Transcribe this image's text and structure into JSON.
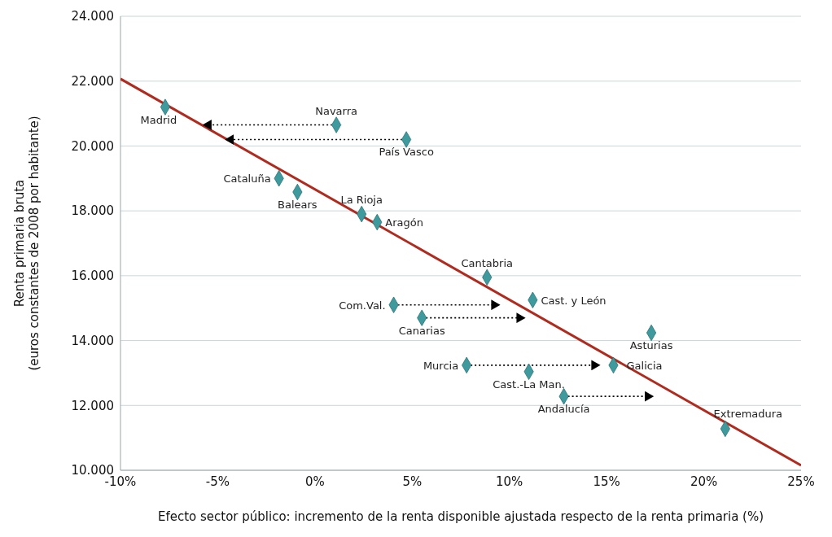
{
  "chart_data": {
    "type": "scatter",
    "xlabel": "Efecto sector público: incremento de la renta disponible ajustada respecto de la renta primaria (%)",
    "ylabel": "Renta primaria bruta\n(euros constantes de 2008 por habitante)",
    "xlim": [
      -10,
      25
    ],
    "xticks": [
      {
        "value": -10,
        "label": "-10%"
      },
      {
        "value": -5,
        "label": "-5%"
      },
      {
        "value": 0,
        "label": "0%"
      },
      {
        "value": 5,
        "label": "5%"
      },
      {
        "value": 10,
        "label": "10%"
      },
      {
        "value": 15,
        "label": "15%"
      },
      {
        "value": 20,
        "label": "20%"
      },
      {
        "value": 25,
        "label": "25%"
      }
    ],
    "ylim": [
      10000,
      24000
    ],
    "yticks": [
      {
        "value": 10000,
        "label": "10.000"
      },
      {
        "value": 12000,
        "label": "12.000"
      },
      {
        "value": 14000,
        "label": "14.000"
      },
      {
        "value": 16000,
        "label": "16.000"
      },
      {
        "value": 18000,
        "label": "18.000"
      },
      {
        "value": 20000,
        "label": "20.000"
      },
      {
        "value": 22000,
        "label": "22.000"
      },
      {
        "value": 24000,
        "label": "24.000"
      }
    ],
    "grid": "y",
    "marker": "diamond",
    "series": [
      {
        "type": "line",
        "color": "#b02a1e",
        "marker": "none",
        "line_style": "solid",
        "x": [
          -10,
          25
        ],
        "values": [
          22070,
          10150
        ]
      },
      {
        "type": "line",
        "color": "#000000",
        "marker": "none",
        "line_style": "dotted",
        "x": [
          1.1,
          -5.65
        ],
        "values": [
          20650,
          20650
        ]
      },
      {
        "type": "line",
        "color": "#000000",
        "marker": "none",
        "line_style": "dotted",
        "x": [
          4.7,
          -4.5
        ],
        "values": [
          20200,
          20200
        ]
      },
      {
        "type": "line",
        "color": "#000000",
        "marker": "none",
        "line_style": "dotted",
        "x": [
          4.05,
          9.4
        ],
        "values": [
          15100,
          15100
        ]
      },
      {
        "type": "line",
        "color": "#000000",
        "marker": "none",
        "line_style": "dotted",
        "x": [
          5.5,
          10.7
        ],
        "values": [
          14700,
          14700
        ]
      },
      {
        "type": "line",
        "color": "#000000",
        "marker": "none",
        "line_style": "dotted",
        "x": [
          7.8,
          14.55
        ],
        "values": [
          13240,
          13240
        ]
      },
      {
        "type": "line",
        "color": "#000000",
        "marker": "none",
        "line_style": "dotted",
        "x": [
          12.8,
          17.3
        ],
        "values": [
          12280,
          12280
        ]
      },
      {
        "color": "#3f9a9e",
        "x": [
          -7.7,
          1.1,
          4.7,
          -1.85,
          -0.9,
          2.4,
          3.2,
          8.85,
          11.2,
          4.05,
          5.5,
          17.3,
          15.35,
          7.8,
          11.0,
          12.8,
          21.1
        ],
        "values": [
          21200,
          20650,
          20200,
          19000,
          18580,
          17900,
          17650,
          15950,
          15250,
          15100,
          14700,
          14240,
          13240,
          13240,
          13040,
          12280,
          11280
        ],
        "value_labels": [
          "Madrid",
          "Navarra",
          "País Vasco",
          "Cataluña",
          "Balears",
          "La Rioja",
          "Aragón",
          "Cantabria",
          "Cast. y León",
          "Com.Val.",
          "Canarias",
          "Asturias",
          "Galicia",
          "Murcia",
          "Cast.-La Man.",
          "Andalucía",
          "Extremadura"
        ]
      }
    ]
  }
}
